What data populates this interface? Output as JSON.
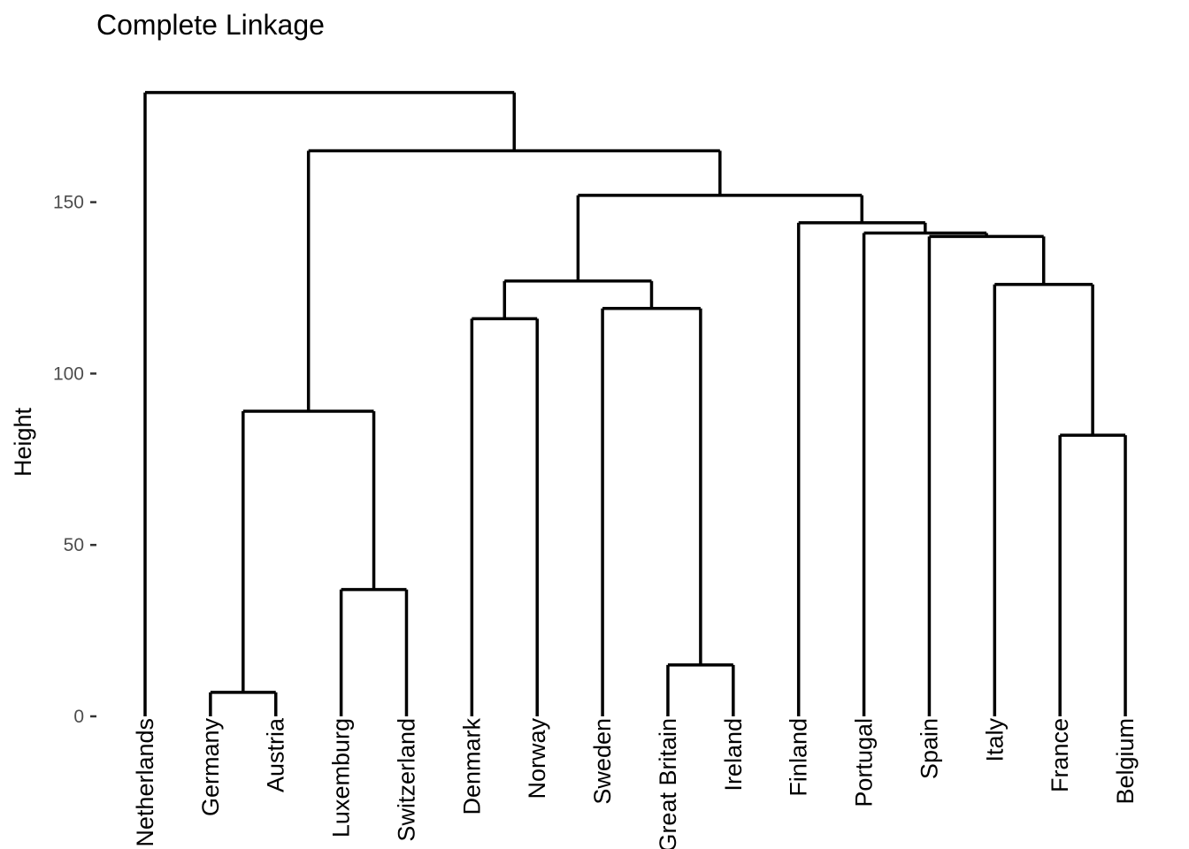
{
  "chart_data": {
    "type": "dendrogram",
    "title": "Complete Linkage",
    "xlabel": "",
    "ylabel": "Height",
    "ylim": [
      0,
      190
    ],
    "yticks": [
      0,
      50,
      100,
      150
    ],
    "grid": false,
    "labels": [
      "Netherlands",
      "Germany",
      "Austria",
      "Luxemburg",
      "Switzerland",
      "Denmark",
      "Norway",
      "Sweden",
      "Great Britain",
      "Ireland",
      "Finland",
      "Portugal",
      "Spain",
      "Italy",
      "France",
      "Belgium"
    ],
    "merges": [
      {
        "left": "Germany",
        "right": "Austria",
        "height": 7
      },
      {
        "left": "Great Britain",
        "right": "Ireland",
        "height": 15
      },
      {
        "left": "Luxemburg",
        "right": "Switzerland",
        "height": 37
      },
      {
        "left": "France",
        "right": "Belgium",
        "height": 82
      },
      {
        "left": "Germany+Austria",
        "right": "Luxemburg+Switzerland",
        "height": 89
      },
      {
        "left": "Denmark",
        "right": "Norway",
        "height": 116
      },
      {
        "left": "Sweden",
        "right": "Great Britain+Ireland",
        "height": 119
      },
      {
        "left": "Italy",
        "right": "France+Belgium",
        "height": 126
      },
      {
        "left": "Denmark+Norway",
        "right": "Sweden+Great Britain+Ireland",
        "height": 127
      },
      {
        "left": "Spain",
        "right": "Italy+France+Belgium",
        "height": 140
      },
      {
        "left": "Portugal",
        "right": "Spain+Italy+France+Belgium",
        "height": 141
      },
      {
        "left": "Finland",
        "right": "Portugal+Spain+Italy+France+Belgium",
        "height": 144
      },
      {
        "left": "Denmark+Norway+Sweden+Great Britain+Ireland",
        "right": "Finland+Portugal+Spain+Italy+France+Belgium",
        "height": 152
      },
      {
        "left": "Germany+Austria+Luxemburg+Switzerland",
        "right": "Denmark+Norway+Sweden+Great Britain+Ireland+Finland+Portugal+Spain+Italy+France+Belgium",
        "height": 165
      },
      {
        "left": "Netherlands",
        "right": "Germany+Austria+Luxemburg+Switzerland+Denmark+Norway+Sweden+Great Britain+Ireland+Finland+Portugal+Spain+Italy+France+Belgium",
        "height": 182
      }
    ]
  }
}
